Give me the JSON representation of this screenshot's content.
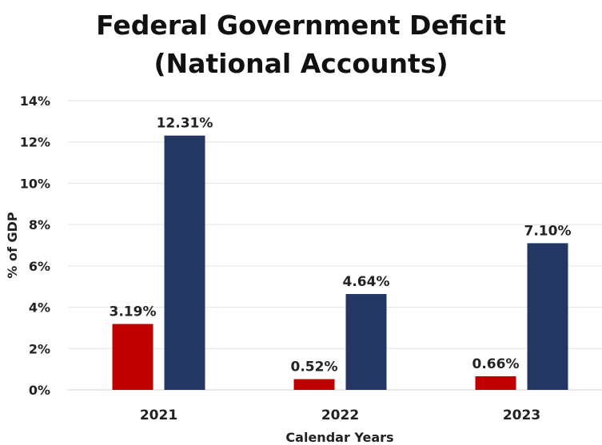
{
  "chart_data": {
    "type": "bar",
    "title_line1": "Federal Government Deficit",
    "title_line2": "(National Accounts)",
    "xlabel": "Calendar Years",
    "ylabel": "% of GDP",
    "ylim": [
      0,
      14
    ],
    "yticks": [
      "0%",
      "2%",
      "4%",
      "6%",
      "8%",
      "10%",
      "12%",
      "14%"
    ],
    "grid": true,
    "categories": [
      "2021",
      "2022",
      "2023"
    ],
    "series": [
      {
        "values": [
          3.19,
          0.52,
          0.66
        ],
        "labels": [
          "3.19%",
          "0.52%",
          "0.66%"
        ],
        "color": "#c00000"
      },
      {
        "values": [
          12.31,
          4.64,
          7.1
        ],
        "labels": [
          "12.31%",
          "4.64%",
          "7.10%"
        ],
        "color": "#243763"
      }
    ]
  }
}
